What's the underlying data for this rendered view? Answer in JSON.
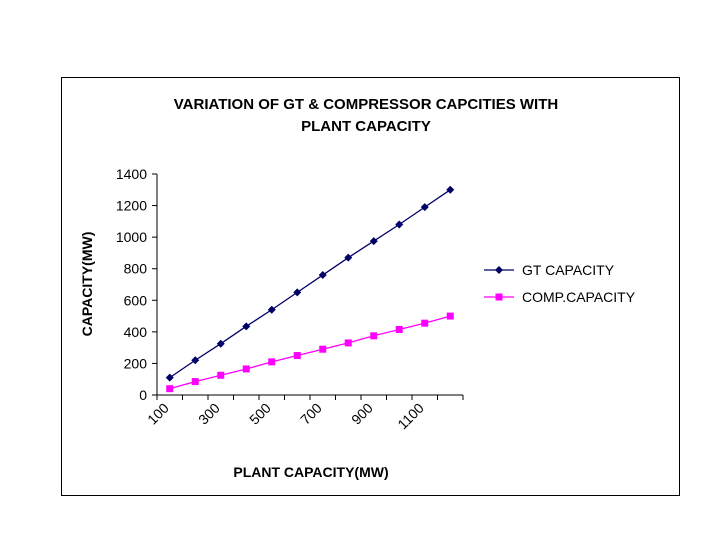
{
  "chart_data": {
    "type": "line",
    "title_line1": "VARIATION OF GT & COMPRESSOR CAPCITIES WITH",
    "title_line2": "PLANT CAPACITY",
    "xlabel": "PLANT CAPACITY(MW)",
    "ylabel": "CAPACITY(MW)",
    "x": [
      100,
      200,
      300,
      400,
      500,
      600,
      700,
      800,
      900,
      1000,
      1100,
      1200
    ],
    "x_tick_labels": [
      "100",
      "300",
      "500",
      "700",
      "900",
      "1100"
    ],
    "y_ticks": [
      0,
      200,
      400,
      600,
      800,
      1000,
      1200,
      1400
    ],
    "ylim": [
      0,
      1400
    ],
    "legend_position": "right",
    "series": [
      {
        "name": "GT CAPACITY",
        "color": "#000066",
        "marker": "diamond",
        "values": [
          110,
          220,
          325,
          435,
          540,
          650,
          760,
          870,
          975,
          1080,
          1190,
          1300
        ]
      },
      {
        "name": "COMP.CAPACITY",
        "color": "#ff00ff",
        "marker": "square",
        "values": [
          40,
          85,
          125,
          165,
          210,
          250,
          290,
          330,
          375,
          415,
          455,
          500
        ]
      }
    ]
  }
}
